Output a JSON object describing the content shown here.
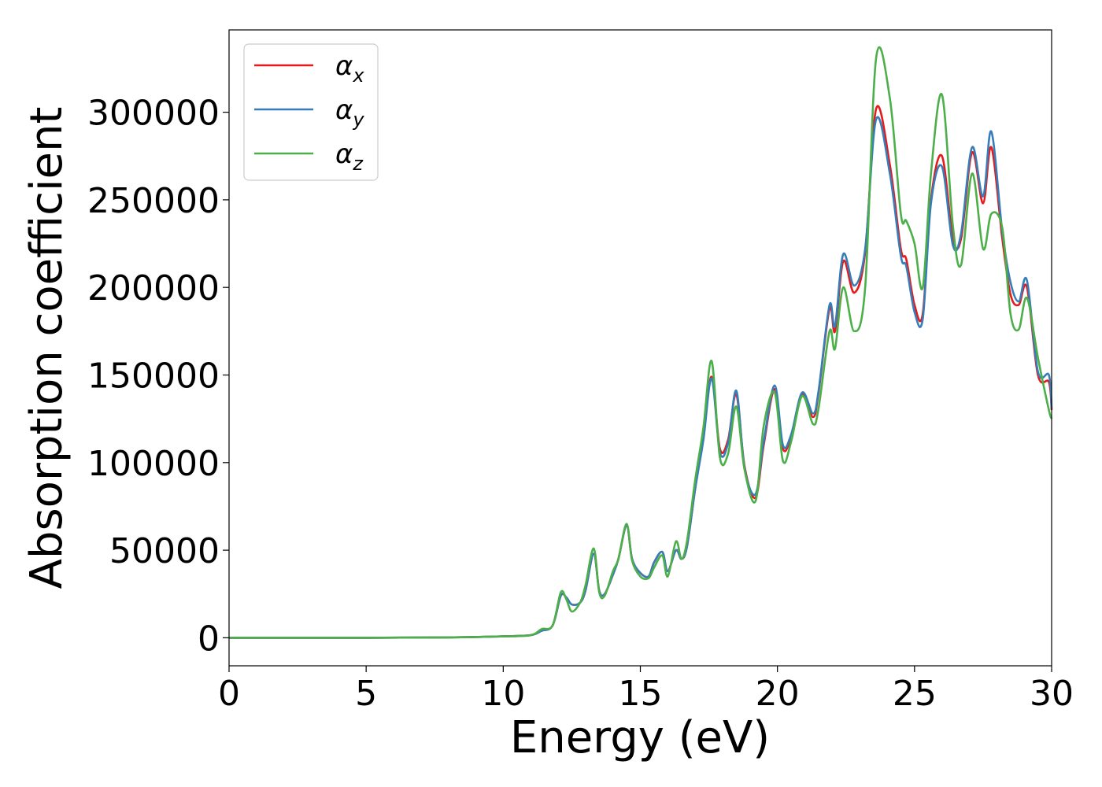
{
  "chart_data": {
    "type": "line",
    "xlabel": "Energy (eV)",
    "ylabel": "Absorption coefficient",
    "xlim": [
      0,
      30
    ],
    "ylim": [
      -16000,
      347000
    ],
    "x_ticks": [
      0,
      5,
      10,
      15,
      20,
      25,
      30
    ],
    "x_tick_labels": [
      "0",
      "5",
      "10",
      "15",
      "20",
      "25",
      "30"
    ],
    "y_ticks": [
      0,
      50000,
      100000,
      150000,
      200000,
      250000,
      300000
    ],
    "y_tick_labels": [
      "0",
      "50000",
      "100000",
      "150000",
      "200000",
      "250000",
      "300000"
    ],
    "grid": false,
    "legend_position": "top-left",
    "series": [
      {
        "name": "α_x",
        "symbol": "α",
        "subscript": "x",
        "color": "#e41a1c",
        "points": [
          [
            0,
            0
          ],
          [
            5,
            0
          ],
          [
            8,
            200
          ],
          [
            10,
            800
          ],
          [
            11,
            1500
          ],
          [
            11.4,
            4000
          ],
          [
            11.8,
            7000
          ],
          [
            12.1,
            24000
          ],
          [
            12.3,
            23000
          ],
          [
            12.5,
            19000
          ],
          [
            12.8,
            20000
          ],
          [
            13.0,
            27000
          ],
          [
            13.3,
            48000
          ],
          [
            13.5,
            27000
          ],
          [
            13.7,
            25000
          ],
          [
            14.0,
            36000
          ],
          [
            14.2,
            45000
          ],
          [
            14.5,
            64000
          ],
          [
            14.7,
            45000
          ],
          [
            15.0,
            37000
          ],
          [
            15.3,
            35000
          ],
          [
            15.5,
            43000
          ],
          [
            15.8,
            49000
          ],
          [
            16.0,
            38000
          ],
          [
            16.3,
            50000
          ],
          [
            16.5,
            45000
          ],
          [
            16.7,
            52000
          ],
          [
            17.0,
            85000
          ],
          [
            17.3,
            115000
          ],
          [
            17.6,
            149000
          ],
          [
            17.9,
            108000
          ],
          [
            18.2,
            113000
          ],
          [
            18.5,
            139000
          ],
          [
            18.8,
            98000
          ],
          [
            19.2,
            80000
          ],
          [
            19.5,
            110000
          ],
          [
            19.9,
            142000
          ],
          [
            20.2,
            108000
          ],
          [
            20.5,
            115000
          ],
          [
            20.9,
            139000
          ],
          [
            21.3,
            126000
          ],
          [
            21.5,
            140000
          ],
          [
            21.9,
            188000
          ],
          [
            22.1,
            175000
          ],
          [
            22.4,
            215000
          ],
          [
            22.8,
            197000
          ],
          [
            23.2,
            220000
          ],
          [
            23.6,
            302000
          ],
          [
            24.1,
            270000
          ],
          [
            24.5,
            222000
          ],
          [
            24.7,
            216000
          ],
          [
            25.0,
            190000
          ],
          [
            25.3,
            185000
          ],
          [
            25.6,
            250000
          ],
          [
            26.0,
            275000
          ],
          [
            26.4,
            228000
          ],
          [
            26.7,
            228000
          ],
          [
            27.1,
            277000
          ],
          [
            27.5,
            248000
          ],
          [
            27.8,
            280000
          ],
          [
            28.2,
            228000
          ],
          [
            28.5,
            196000
          ],
          [
            28.8,
            190000
          ],
          [
            29.1,
            200000
          ],
          [
            29.5,
            150000
          ],
          [
            29.9,
            146000
          ],
          [
            30,
            130000
          ]
        ]
      },
      {
        "name": "α_y",
        "symbol": "α",
        "subscript": "y",
        "color": "#377eb8",
        "points": [
          [
            0,
            0
          ],
          [
            5,
            0
          ],
          [
            8,
            200
          ],
          [
            10,
            800
          ],
          [
            11,
            1500
          ],
          [
            11.4,
            4000
          ],
          [
            11.8,
            7000
          ],
          [
            12.1,
            24000
          ],
          [
            12.3,
            23000
          ],
          [
            12.5,
            19000
          ],
          [
            12.8,
            20000
          ],
          [
            13.0,
            27000
          ],
          [
            13.3,
            48000
          ],
          [
            13.5,
            27000
          ],
          [
            13.7,
            25000
          ],
          [
            14.0,
            36000
          ],
          [
            14.2,
            45000
          ],
          [
            14.5,
            64000
          ],
          [
            14.7,
            45000
          ],
          [
            15.0,
            37000
          ],
          [
            15.3,
            35000
          ],
          [
            15.5,
            43000
          ],
          [
            15.8,
            49000
          ],
          [
            16.0,
            38000
          ],
          [
            16.3,
            50000
          ],
          [
            16.5,
            45000
          ],
          [
            16.7,
            52000
          ],
          [
            17.0,
            85000
          ],
          [
            17.3,
            113000
          ],
          [
            17.6,
            148000
          ],
          [
            17.9,
            106000
          ],
          [
            18.2,
            111000
          ],
          [
            18.5,
            141000
          ],
          [
            18.8,
            97000
          ],
          [
            19.2,
            82000
          ],
          [
            19.5,
            112000
          ],
          [
            19.9,
            144000
          ],
          [
            20.2,
            110000
          ],
          [
            20.5,
            116000
          ],
          [
            20.9,
            140000
          ],
          [
            21.3,
            128000
          ],
          [
            21.5,
            141000
          ],
          [
            21.9,
            190000
          ],
          [
            22.1,
            178000
          ],
          [
            22.4,
            219000
          ],
          [
            22.8,
            201000
          ],
          [
            23.2,
            222000
          ],
          [
            23.6,
            296000
          ],
          [
            24.1,
            265000
          ],
          [
            24.5,
            218000
          ],
          [
            24.7,
            212000
          ],
          [
            25.0,
            186000
          ],
          [
            25.3,
            182000
          ],
          [
            25.6,
            248000
          ],
          [
            26.0,
            269000
          ],
          [
            26.4,
            224000
          ],
          [
            26.7,
            231000
          ],
          [
            27.1,
            280000
          ],
          [
            27.5,
            252000
          ],
          [
            27.8,
            289000
          ],
          [
            28.2,
            232000
          ],
          [
            28.5,
            203000
          ],
          [
            28.8,
            192000
          ],
          [
            29.1,
            204000
          ],
          [
            29.5,
            152000
          ],
          [
            29.9,
            150000
          ],
          [
            30,
            131000
          ]
        ]
      },
      {
        "name": "α_z",
        "symbol": "α",
        "subscript": "z",
        "color": "#4daf4a",
        "points": [
          [
            0,
            0
          ],
          [
            5,
            0
          ],
          [
            8,
            200
          ],
          [
            10,
            800
          ],
          [
            11,
            1500
          ],
          [
            11.4,
            5000
          ],
          [
            11.8,
            7000
          ],
          [
            12.1,
            26000
          ],
          [
            12.3,
            22000
          ],
          [
            12.5,
            15000
          ],
          [
            12.8,
            20000
          ],
          [
            13.0,
            30000
          ],
          [
            13.3,
            51000
          ],
          [
            13.5,
            26000
          ],
          [
            13.7,
            24000
          ],
          [
            14.0,
            38000
          ],
          [
            14.2,
            45000
          ],
          [
            14.5,
            65000
          ],
          [
            14.7,
            44000
          ],
          [
            15.0,
            35000
          ],
          [
            15.3,
            34000
          ],
          [
            15.5,
            40000
          ],
          [
            15.8,
            47000
          ],
          [
            16.0,
            35000
          ],
          [
            16.3,
            55000
          ],
          [
            16.5,
            45000
          ],
          [
            16.7,
            55000
          ],
          [
            17.0,
            90000
          ],
          [
            17.3,
            120000
          ],
          [
            17.6,
            158000
          ],
          [
            17.9,
            103000
          ],
          [
            18.2,
            105000
          ],
          [
            18.5,
            132000
          ],
          [
            18.8,
            96000
          ],
          [
            19.2,
            78000
          ],
          [
            19.5,
            121000
          ],
          [
            19.9,
            140000
          ],
          [
            20.2,
            101000
          ],
          [
            20.5,
            112000
          ],
          [
            20.9,
            138000
          ],
          [
            21.3,
            122000
          ],
          [
            21.5,
            131000
          ],
          [
            21.9,
            175000
          ],
          [
            22.1,
            165000
          ],
          [
            22.4,
            200000
          ],
          [
            22.8,
            175000
          ],
          [
            23.2,
            200000
          ],
          [
            23.6,
            331000
          ],
          [
            24.1,
            308000
          ],
          [
            24.5,
            242000
          ],
          [
            24.7,
            238000
          ],
          [
            25.0,
            225000
          ],
          [
            25.3,
            200000
          ],
          [
            25.6,
            265000
          ],
          [
            26.0,
            310000
          ],
          [
            26.4,
            235000
          ],
          [
            26.7,
            213000
          ],
          [
            27.1,
            265000
          ],
          [
            27.5,
            222000
          ],
          [
            27.8,
            242000
          ],
          [
            28.2,
            234000
          ],
          [
            28.5,
            185000
          ],
          [
            28.8,
            176000
          ],
          [
            29.1,
            194000
          ],
          [
            29.5,
            160000
          ],
          [
            29.9,
            130000
          ],
          [
            30,
            125000
          ]
        ]
      }
    ]
  }
}
